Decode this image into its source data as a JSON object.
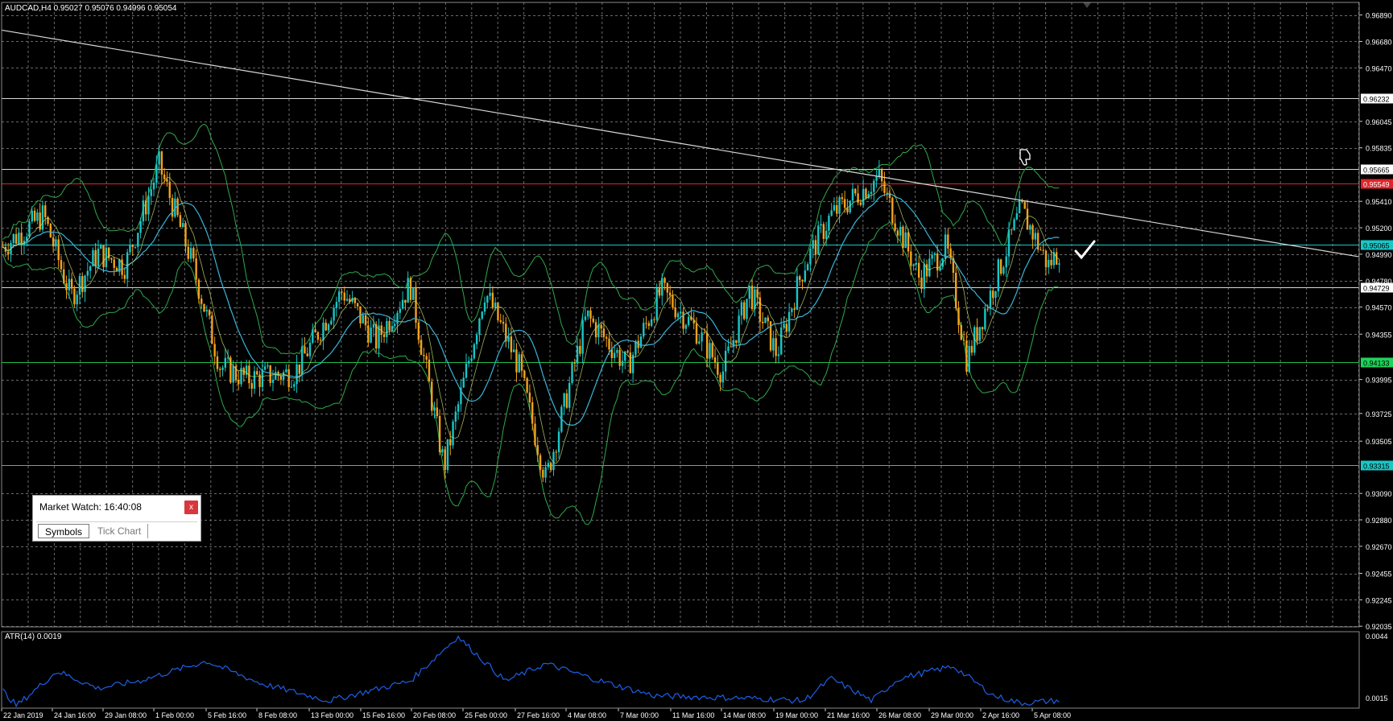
{
  "header": {
    "symbol_info": "AUDCAD,H4  0.95027 0.95076 0.94996 0.95054"
  },
  "indicator": {
    "label": "ATR(14) 0.0019",
    "scale_top": "0.0044",
    "scale_bottom": "0.0015"
  },
  "price_scale": [
    "0.96890",
    "0.96680",
    "0.96470",
    "0.96045",
    "0.95835",
    "0.95410",
    "0.95200",
    "0.94990",
    "0.94780",
    "0.94570",
    "0.94355",
    "0.93995",
    "0.93725",
    "0.93505",
    "0.93090",
    "0.92880",
    "0.92670",
    "0.92455",
    "0.92245",
    "0.92035"
  ],
  "price_scale_values": [
    0.9689,
    0.9668,
    0.9647,
    0.96045,
    0.95835,
    0.9541,
    0.952,
    0.9499,
    0.9478,
    0.9457,
    0.94355,
    0.93995,
    0.93725,
    0.93505,
    0.9309,
    0.9288,
    0.9267,
    0.92455,
    0.92245,
    0.92035
  ],
  "levels": [
    {
      "label": "0.96232",
      "price": 0.96232,
      "color": "#d8d8d8",
      "box": "#ffffff",
      "text": "#000000"
    },
    {
      "label": "0.95665",
      "price": 0.95665,
      "color": "#d8d8d8",
      "box": "#ffffff",
      "text": "#000000"
    },
    {
      "label": "0.95549",
      "price": 0.95549,
      "color": "#e0242a",
      "box": "#e0242a",
      "text": "#ffffff"
    },
    {
      "label": "0.95065",
      "price": 0.95065,
      "color": "#19c6c6",
      "box": "#19c6c6",
      "text": "#000000"
    },
    {
      "label": "0.94729",
      "price": 0.94729,
      "color": "#d8d8d8",
      "box": "#ffffff",
      "text": "#000000"
    },
    {
      "label": "0.94133",
      "price": 0.94133,
      "color": "#1fbf4a",
      "box": "#1fd25a",
      "text": "#000000"
    },
    {
      "label": "0.93315",
      "price": 0.93315,
      "color": "#19c6c6",
      "box": "#19c6c6",
      "text": "#000000"
    }
  ],
  "time_scale": [
    "22 Jan 2019",
    "24 Jan 16:00",
    "29 Jan 08:00",
    "1 Feb 00:00",
    "5 Feb 16:00",
    "8 Feb 08:00",
    "13 Feb 00:00",
    "15 Feb 16:00",
    "20 Feb 08:00",
    "25 Feb 00:00",
    "27 Feb 16:00",
    "4 Mar 08:00",
    "7 Mar 00:00",
    "11 Mar 16:00",
    "14 Mar 08:00",
    "19 Mar 00:00",
    "21 Mar 16:00",
    "26 Mar 08:00",
    "29 Mar 00:00",
    "2 Apr 16:00",
    "5 Apr 08:00"
  ],
  "market_watch": {
    "title": "Market Watch: 16:40:08",
    "close_label": "x",
    "tabs": [
      {
        "label": "Symbols",
        "active": true
      },
      {
        "label": "Tick Chart",
        "active": false
      }
    ]
  },
  "colors": {
    "background": "#000000",
    "grid": "#6a6a6a",
    "bull": "#19c6c6",
    "bear": "#f2a21c",
    "bands": "#2fa84a",
    "ma": "#3ab4d8",
    "ma_slow": "#c8e070",
    "atr": "#1d5fe8",
    "trendline": "#d8d8d8"
  },
  "icons": [
    "thumbs-down-icon",
    "checkmark-icon",
    "arrow-down-icon"
  ],
  "chart_data": {
    "type": "candlestick",
    "symbol": "AUDCAD",
    "timeframe": "H4",
    "last_ohlc": {
      "open": 0.95027,
      "high": 0.95076,
      "low": 0.94996,
      "close": 0.95054
    },
    "ylim": [
      0.9203,
      0.9699
    ],
    "anchors": [
      {
        "x": 0.0,
        "y": 0.9505
      },
      {
        "x": 0.03,
        "y": 0.953
      },
      {
        "x": 0.05,
        "y": 0.9465
      },
      {
        "x": 0.07,
        "y": 0.95
      },
      {
        "x": 0.09,
        "y": 0.949
      },
      {
        "x": 0.115,
        "y": 0.957
      },
      {
        "x": 0.14,
        "y": 0.949
      },
      {
        "x": 0.16,
        "y": 0.941
      },
      {
        "x": 0.18,
        "y": 0.94
      },
      {
        "x": 0.215,
        "y": 0.9405
      },
      {
        "x": 0.25,
        "y": 0.947
      },
      {
        "x": 0.275,
        "y": 0.943
      },
      {
        "x": 0.3,
        "y": 0.9475
      },
      {
        "x": 0.325,
        "y": 0.933
      },
      {
        "x": 0.355,
        "y": 0.947
      },
      {
        "x": 0.38,
        "y": 0.941
      },
      {
        "x": 0.4,
        "y": 0.932
      },
      {
        "x": 0.43,
        "y": 0.945
      },
      {
        "x": 0.46,
        "y": 0.941
      },
      {
        "x": 0.485,
        "y": 0.947
      },
      {
        "x": 0.51,
        "y": 0.944
      },
      {
        "x": 0.53,
        "y": 0.9405
      },
      {
        "x": 0.55,
        "y": 0.947
      },
      {
        "x": 0.57,
        "y": 0.942
      },
      {
        "x": 0.59,
        "y": 0.949
      },
      {
        "x": 0.61,
        "y": 0.953
      },
      {
        "x": 0.645,
        "y": 0.956
      },
      {
        "x": 0.675,
        "y": 0.948
      },
      {
        "x": 0.695,
        "y": 0.9505
      },
      {
        "x": 0.71,
        "y": 0.9415
      },
      {
        "x": 0.735,
        "y": 0.949
      },
      {
        "x": 0.75,
        "y": 0.9535
      },
      {
        "x": 0.77,
        "y": 0.949
      },
      {
        "x": 0.78,
        "y": 0.9505
      }
    ],
    "atr_anchors": [
      {
        "x": 0.0,
        "y": 0.0022
      },
      {
        "x": 0.01,
        "y": 0.0016
      },
      {
        "x": 0.04,
        "y": 0.003
      },
      {
        "x": 0.07,
        "y": 0.0023
      },
      {
        "x": 0.1,
        "y": 0.0026
      },
      {
        "x": 0.15,
        "y": 0.0034
      },
      {
        "x": 0.19,
        "y": 0.0025
      },
      {
        "x": 0.24,
        "y": 0.0018
      },
      {
        "x": 0.3,
        "y": 0.0026
      },
      {
        "x": 0.335,
        "y": 0.0044
      },
      {
        "x": 0.37,
        "y": 0.0026
      },
      {
        "x": 0.4,
        "y": 0.0033
      },
      {
        "x": 0.44,
        "y": 0.0026
      },
      {
        "x": 0.48,
        "y": 0.002
      },
      {
        "x": 0.55,
        "y": 0.0019
      },
      {
        "x": 0.59,
        "y": 0.0018
      },
      {
        "x": 0.61,
        "y": 0.0027
      },
      {
        "x": 0.64,
        "y": 0.0018
      },
      {
        "x": 0.66,
        "y": 0.0027
      },
      {
        "x": 0.7,
        "y": 0.0032
      },
      {
        "x": 0.73,
        "y": 0.002
      },
      {
        "x": 0.75,
        "y": 0.0017
      },
      {
        "x": 0.775,
        "y": 0.0018
      }
    ],
    "atr_ylim": [
      0.0015,
      0.0046
    ],
    "trendline": [
      {
        "x": 0.0,
        "y": 0.9677
      },
      {
        "x": 1.0,
        "y": 0.9497
      }
    ]
  }
}
